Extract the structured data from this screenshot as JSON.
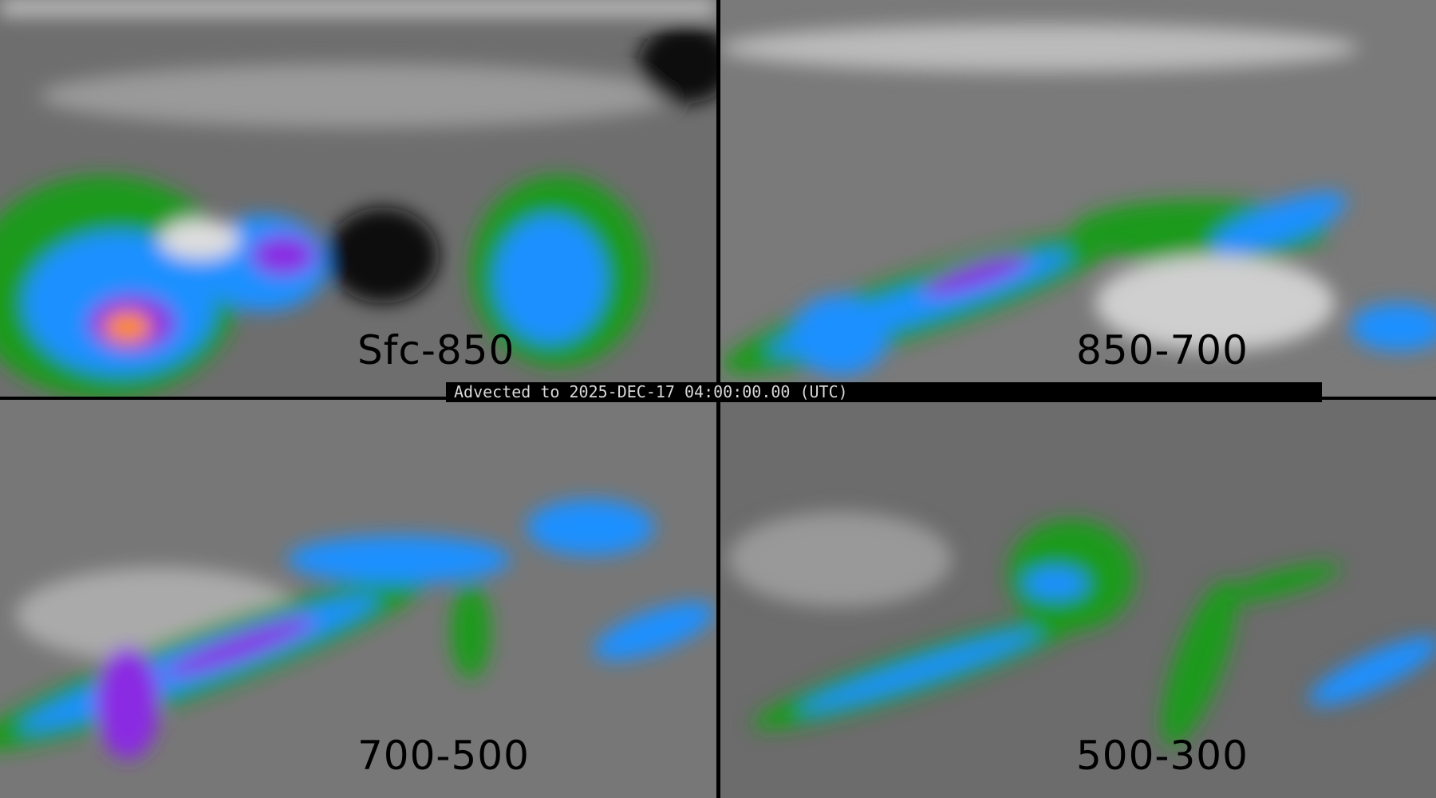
{
  "panels": [
    {
      "label": "Sfc-850"
    },
    {
      "label": "850-700"
    },
    {
      "label": "700-500"
    },
    {
      "label": "500-300"
    }
  ],
  "banner": {
    "text": "Advected to 2025-DEC-17 04:00:00.00 (UTC)"
  },
  "colors": {
    "low": "#6a6a6a",
    "mid": "#e0e0e0",
    "green": "#1a9a1a",
    "blue": "#1e90ff",
    "purple": "#8a2be2",
    "red": "#d02020",
    "orange": "#ff8c00"
  }
}
